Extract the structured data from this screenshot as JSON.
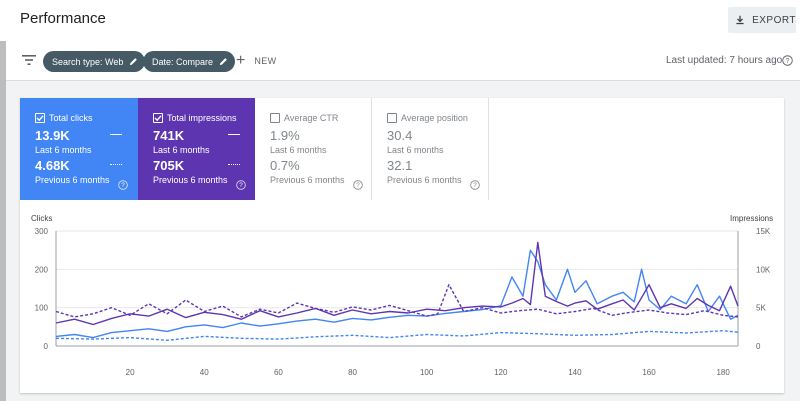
{
  "header": {
    "title": "Performance",
    "export_label": "EXPORT"
  },
  "filters": {
    "chips": [
      {
        "label": "Search type: Web"
      },
      {
        "label": "Date: Compare"
      }
    ],
    "new_label": "NEW",
    "last_updated": "Last updated: 7 hours ago"
  },
  "metrics": [
    {
      "title": "Total clicks",
      "checked": true,
      "value_current": "13.9K",
      "period_current": "Last 6 months",
      "value_previous": "4.68K",
      "period_previous": "Previous 6 months",
      "color": "#4285f4"
    },
    {
      "title": "Total impressions",
      "checked": true,
      "value_current": "741K",
      "period_current": "Last 6 months",
      "value_previous": "705K",
      "period_previous": "Previous 6 months",
      "color": "#5e35b1"
    },
    {
      "title": "Average CTR",
      "checked": false,
      "value_current": "1.9%",
      "period_current": "Last 6 months",
      "value_previous": "0.7%",
      "period_previous": "Previous 6 months"
    },
    {
      "title": "Average position",
      "checked": false,
      "value_current": "30.4",
      "period_current": "Last 6 months",
      "value_previous": "32.1",
      "period_previous": "Previous 6 months"
    }
  ],
  "chart_data": {
    "type": "line",
    "ylabel": "Clicks",
    "y2label": "Impressions",
    "ylim": [
      0,
      300
    ],
    "y_ticks": [
      "0",
      "100",
      "200",
      "300"
    ],
    "y2lim": [
      0,
      15000
    ],
    "y2_ticks": [
      "0",
      "5K",
      "10K",
      "15K"
    ],
    "xlim": [
      0,
      184
    ],
    "x_ticks": [
      "20",
      "40",
      "60",
      "80",
      "100",
      "120",
      "140",
      "160",
      "180"
    ],
    "grid": true,
    "series": [
      {
        "name": "Total clicks",
        "axis": "left",
        "style": "solid",
        "color": "#4285f4",
        "x": [
          0,
          5,
          10,
          15,
          20,
          25,
          30,
          35,
          40,
          45,
          50,
          55,
          60,
          65,
          70,
          75,
          80,
          85,
          90,
          95,
          100,
          105,
          110,
          115,
          120,
          123,
          126,
          128,
          130,
          132,
          135,
          138,
          140,
          143,
          146,
          150,
          153,
          156,
          158,
          160,
          163,
          166,
          170,
          173,
          176,
          179,
          182,
          184
        ],
        "values": [
          25,
          30,
          22,
          35,
          40,
          45,
          38,
          50,
          55,
          48,
          60,
          52,
          58,
          65,
          70,
          62,
          72,
          68,
          75,
          80,
          78,
          85,
          90,
          95,
          105,
          180,
          130,
          250,
          220,
          160,
          120,
          200,
          140,
          170,
          110,
          130,
          140,
          115,
          200,
          120,
          95,
          130,
          110,
          160,
          90,
          130,
          70,
          80
        ]
      },
      {
        "name": "Total impressions",
        "axis": "right",
        "style": "solid",
        "color": "#5e35b1",
        "x": [
          0,
          5,
          10,
          15,
          20,
          25,
          30,
          35,
          40,
          45,
          50,
          55,
          60,
          65,
          70,
          75,
          80,
          85,
          90,
          95,
          100,
          105,
          110,
          115,
          120,
          123,
          126,
          128,
          130,
          132,
          135,
          138,
          140,
          143,
          146,
          150,
          153,
          156,
          158,
          160,
          163,
          166,
          170,
          173,
          176,
          179,
          182,
          184
        ],
        "values": [
          3000,
          3500,
          2800,
          3600,
          4200,
          3900,
          4800,
          3700,
          4400,
          4100,
          3500,
          4600,
          3800,
          4300,
          4900,
          4000,
          4700,
          4200,
          4500,
          4300,
          4800,
          4600,
          5000,
          5200,
          5100,
          5600,
          6200,
          5400,
          13500,
          6500,
          5800,
          5200,
          5600,
          5900,
          4800,
          5500,
          6000,
          4700,
          6300,
          8000,
          5000,
          5500,
          4900,
          6200,
          5300,
          4600,
          7800,
          5200
        ]
      },
      {
        "name": "Clicks (previous 6 months)",
        "axis": "left",
        "style": "dashed",
        "color": "#4285f4",
        "x": [
          0,
          10,
          20,
          30,
          40,
          50,
          60,
          70,
          80,
          90,
          100,
          110,
          120,
          130,
          140,
          150,
          160,
          170,
          180,
          184
        ],
        "values": [
          20,
          18,
          22,
          15,
          25,
          20,
          18,
          24,
          28,
          22,
          30,
          26,
          35,
          32,
          28,
          30,
          38,
          34,
          40,
          36
        ]
      },
      {
        "name": "Impressions (previous 6 months)",
        "axis": "right",
        "style": "dashed",
        "color": "#5e35b1",
        "x": [
          0,
          5,
          10,
          15,
          20,
          25,
          30,
          35,
          40,
          45,
          50,
          55,
          60,
          65,
          70,
          75,
          80,
          85,
          90,
          95,
          100,
          103,
          106,
          110,
          115,
          120,
          125,
          130,
          135,
          140,
          145,
          150,
          155,
          160,
          165,
          170,
          175,
          180,
          184
        ],
        "values": [
          4500,
          3800,
          4200,
          5000,
          4000,
          5500,
          4200,
          6000,
          4500,
          5200,
          3800,
          4800,
          4300,
          5600,
          4900,
          4400,
          5100,
          4700,
          5300,
          4600,
          3900,
          4200,
          8000,
          4500,
          5000,
          4300,
          4600,
          4800,
          4200,
          4500,
          4900,
          4000,
          4400,
          4700,
          4300,
          4100,
          4600,
          4000,
          3800
        ]
      }
    ]
  }
}
